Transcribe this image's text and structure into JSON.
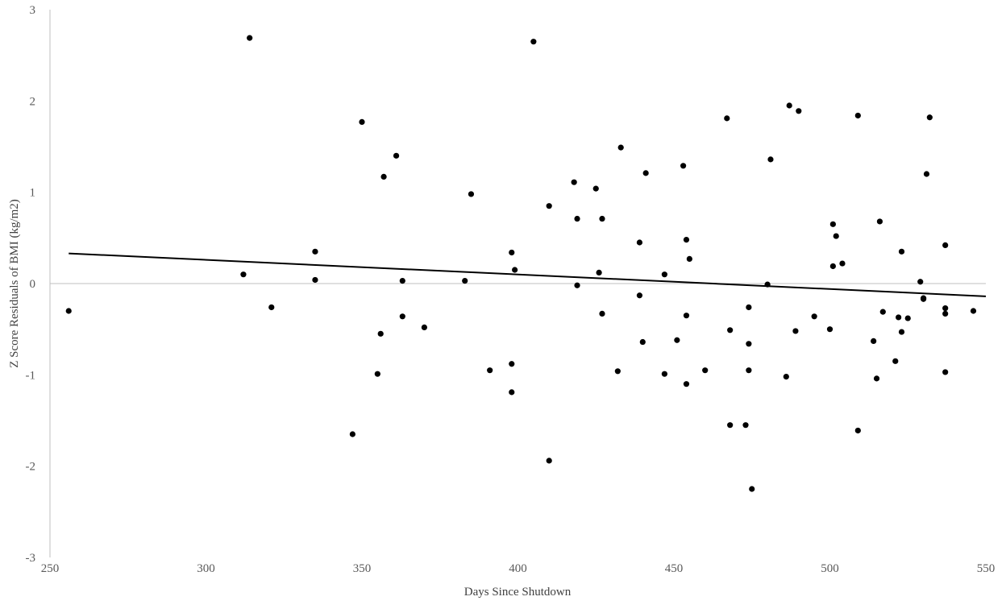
{
  "chart_data": {
    "type": "scatter",
    "title": "",
    "xlabel": "Days Since Shutdown",
    "ylabel": "Z Score Residuals  of BMI (kg/m2)",
    "xlim": [
      250,
      550
    ],
    "ylim": [
      -3,
      3
    ],
    "x_ticks": [
      "250",
      "300",
      "350",
      "400",
      "450",
      "500",
      "550"
    ],
    "y_ticks": [
      "-3",
      "-2",
      "-1",
      "0",
      "1",
      "2",
      "3"
    ],
    "grid": false,
    "legend": "none",
    "point_color": "#000000",
    "trendline": {
      "x": [
        256,
        550
      ],
      "y": [
        0.33,
        -0.14
      ]
    },
    "points": [
      {
        "x": 256,
        "y": -0.3
      },
      {
        "x": 312,
        "y": 0.1
      },
      {
        "x": 314,
        "y": 2.69
      },
      {
        "x": 321,
        "y": -0.26
      },
      {
        "x": 335,
        "y": 0.35
      },
      {
        "x": 335,
        "y": 0.04
      },
      {
        "x": 347,
        "y": -1.65
      },
      {
        "x": 350,
        "y": 1.77
      },
      {
        "x": 355,
        "y": -0.99
      },
      {
        "x": 356,
        "y": -0.55
      },
      {
        "x": 357,
        "y": 1.17
      },
      {
        "x": 361,
        "y": 1.4
      },
      {
        "x": 363,
        "y": 0.03
      },
      {
        "x": 363,
        "y": -0.36
      },
      {
        "x": 370,
        "y": -0.48
      },
      {
        "x": 383,
        "y": 0.03
      },
      {
        "x": 385,
        "y": 0.98
      },
      {
        "x": 391,
        "y": -0.95
      },
      {
        "x": 398,
        "y": 0.34
      },
      {
        "x": 398,
        "y": -0.88
      },
      {
        "x": 398,
        "y": -1.19
      },
      {
        "x": 399,
        "y": 0.15
      },
      {
        "x": 405,
        "y": 2.65
      },
      {
        "x": 410,
        "y": 0.85
      },
      {
        "x": 410,
        "y": -1.94
      },
      {
        "x": 418,
        "y": 1.11
      },
      {
        "x": 419,
        "y": 0.71
      },
      {
        "x": 419,
        "y": -0.02
      },
      {
        "x": 425,
        "y": 1.04
      },
      {
        "x": 426,
        "y": 0.12
      },
      {
        "x": 427,
        "y": 0.71
      },
      {
        "x": 427,
        "y": -0.33
      },
      {
        "x": 432,
        "y": -0.96
      },
      {
        "x": 433,
        "y": 1.49
      },
      {
        "x": 439,
        "y": 0.45
      },
      {
        "x": 439,
        "y": -0.13
      },
      {
        "x": 440,
        "y": -0.64
      },
      {
        "x": 441,
        "y": 1.21
      },
      {
        "x": 447,
        "y": 0.1
      },
      {
        "x": 447,
        "y": -0.99
      },
      {
        "x": 451,
        "y": -0.62
      },
      {
        "x": 453,
        "y": 1.29
      },
      {
        "x": 454,
        "y": 0.48
      },
      {
        "x": 454,
        "y": -0.35
      },
      {
        "x": 454,
        "y": -1.1
      },
      {
        "x": 455,
        "y": 0.27
      },
      {
        "x": 460,
        "y": -0.95
      },
      {
        "x": 467,
        "y": 1.81
      },
      {
        "x": 468,
        "y": -0.51
      },
      {
        "x": 468,
        "y": -1.55
      },
      {
        "x": 473,
        "y": -1.55
      },
      {
        "x": 474,
        "y": -0.26
      },
      {
        "x": 474,
        "y": -0.66
      },
      {
        "x": 474,
        "y": -0.95
      },
      {
        "x": 475,
        "y": -2.25
      },
      {
        "x": 480,
        "y": -0.01
      },
      {
        "x": 481,
        "y": 1.36
      },
      {
        "x": 486,
        "y": -1.02
      },
      {
        "x": 487,
        "y": 1.95
      },
      {
        "x": 489,
        "y": -0.52
      },
      {
        "x": 490,
        "y": 1.89
      },
      {
        "x": 495,
        "y": -0.36
      },
      {
        "x": 500,
        "y": -0.5
      },
      {
        "x": 501,
        "y": 0.65
      },
      {
        "x": 501,
        "y": 0.19
      },
      {
        "x": 502,
        "y": 0.52
      },
      {
        "x": 504,
        "y": 0.22
      },
      {
        "x": 509,
        "y": 1.84
      },
      {
        "x": 509,
        "y": -1.61
      },
      {
        "x": 514,
        "y": -0.63
      },
      {
        "x": 515,
        "y": -1.04
      },
      {
        "x": 516,
        "y": 0.68
      },
      {
        "x": 517,
        "y": -0.31
      },
      {
        "x": 521,
        "y": -0.85
      },
      {
        "x": 522,
        "y": -0.37
      },
      {
        "x": 523,
        "y": 0.35
      },
      {
        "x": 523,
        "y": -0.53
      },
      {
        "x": 525,
        "y": -0.38
      },
      {
        "x": 529,
        "y": 0.02
      },
      {
        "x": 530,
        "y": -0.16
      },
      {
        "x": 530,
        "y": -0.17
      },
      {
        "x": 531,
        "y": 1.2
      },
      {
        "x": 532,
        "y": 1.82
      },
      {
        "x": 537,
        "y": 0.42
      },
      {
        "x": 537,
        "y": -0.27
      },
      {
        "x": 537,
        "y": -0.33
      },
      {
        "x": 537,
        "y": -0.97
      },
      {
        "x": 546,
        "y": -0.3
      }
    ]
  }
}
